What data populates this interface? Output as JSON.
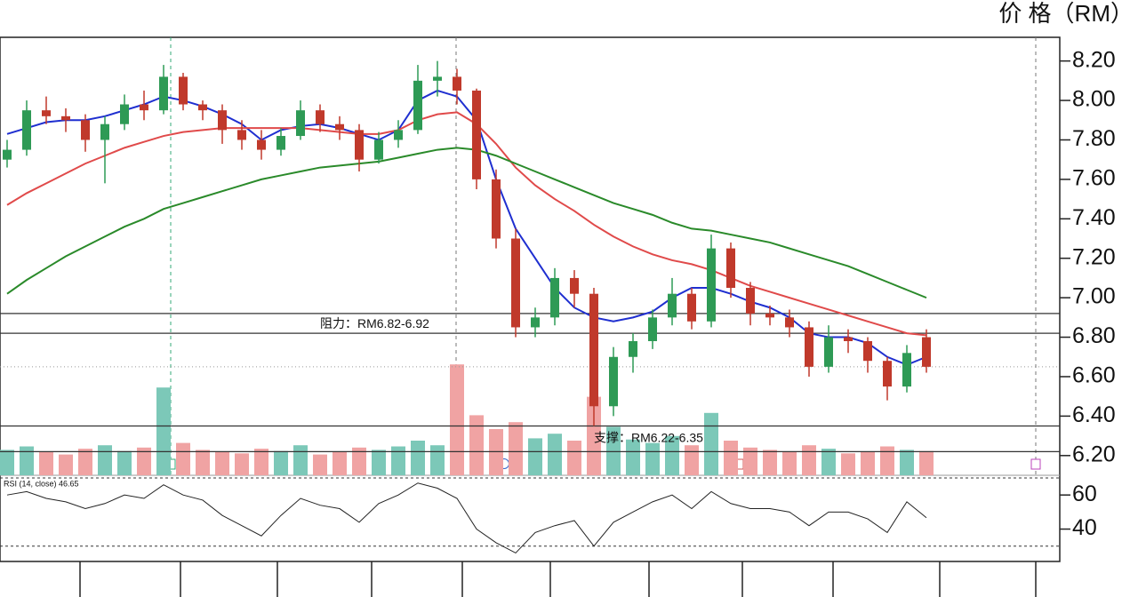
{
  "chart_data": {
    "type": "candlestick",
    "y_axis_label": "价 格（RM）",
    "ylim": [
      6.1,
      8.32
    ],
    "yticks": [
      {
        "value": 8.2,
        "label": "8.20"
      },
      {
        "value": 8.0,
        "label": "8.00"
      },
      {
        "value": 7.8,
        "label": "7.80"
      },
      {
        "value": 7.6,
        "label": "7.60"
      },
      {
        "value": 7.4,
        "label": "7.40"
      },
      {
        "value": 7.2,
        "label": "7.20"
      },
      {
        "value": 7.0,
        "label": "7.00"
      },
      {
        "value": 6.8,
        "label": "6.80"
      },
      {
        "value": 6.6,
        "label": "6.60"
      },
      {
        "value": 6.4,
        "label": "6.40"
      },
      {
        "value": 6.2,
        "label": "6.20"
      }
    ],
    "up_color": "#2e9a55",
    "down_color": "#c0392b",
    "open": [
      7.7,
      7.75,
      7.95,
      7.92,
      7.9,
      7.8,
      7.88,
      7.98,
      7.95,
      8.12,
      7.98,
      7.95,
      7.85,
      7.8,
      7.75,
      7.82,
      7.95,
      7.88,
      7.85,
      7.7,
      7.8,
      7.85,
      8.1,
      8.12,
      8.05,
      7.6,
      7.3,
      6.85,
      6.9,
      7.1,
      7.02,
      6.45,
      6.7,
      6.78,
      6.9,
      7.02,
      6.88,
      7.25,
      7.05,
      6.92,
      6.9,
      6.85,
      6.65,
      6.8,
      6.78,
      6.68,
      6.55,
      6.8
    ],
    "high": [
      7.8,
      8.0,
      8.02,
      7.96,
      7.93,
      7.92,
      8.03,
      8.05,
      8.18,
      8.14,
      8.0,
      7.98,
      7.9,
      7.85,
      7.86,
      8.0,
      7.98,
      7.92,
      7.88,
      7.84,
      7.9,
      8.18,
      8.2,
      8.16,
      8.06,
      7.65,
      7.35,
      6.95,
      7.15,
      7.14,
      7.05,
      6.75,
      6.82,
      6.94,
      7.1,
      7.05,
      7.32,
      7.28,
      7.08,
      6.96,
      6.94,
      6.88,
      6.86,
      6.84,
      6.8,
      6.7,
      6.76,
      6.84
    ],
    "low": [
      7.66,
      7.72,
      7.88,
      7.84,
      7.74,
      7.58,
      7.85,
      7.9,
      7.93,
      7.95,
      7.9,
      7.78,
      7.75,
      7.7,
      7.72,
      7.8,
      7.84,
      7.8,
      7.64,
      7.68,
      7.76,
      7.83,
      8.02,
      7.98,
      7.55,
      7.25,
      6.8,
      6.8,
      6.86,
      6.95,
      6.35,
      6.4,
      6.62,
      6.74,
      6.86,
      6.84,
      6.85,
      7.0,
      6.86,
      6.86,
      6.8,
      6.6,
      6.62,
      6.72,
      6.62,
      6.48,
      6.52,
      6.62
    ],
    "close": [
      7.75,
      7.95,
      7.92,
      7.9,
      7.8,
      7.88,
      7.98,
      7.95,
      8.12,
      7.98,
      7.95,
      7.85,
      7.8,
      7.75,
      7.82,
      7.95,
      7.88,
      7.85,
      7.7,
      7.8,
      7.85,
      8.1,
      8.12,
      8.05,
      7.6,
      7.3,
      6.85,
      6.9,
      7.1,
      7.02,
      6.45,
      6.7,
      6.78,
      6.9,
      7.02,
      6.88,
      7.25,
      7.05,
      6.92,
      6.9,
      6.85,
      6.65,
      6.8,
      6.78,
      6.68,
      6.55,
      6.72,
      6.65
    ],
    "series": [
      {
        "color": "#1f2fd0",
        "values": [
          7.83,
          7.86,
          7.89,
          7.9,
          7.9,
          7.92,
          7.95,
          7.98,
          8.02,
          8.0,
          7.97,
          7.93,
          7.88,
          7.8,
          7.85,
          7.87,
          7.88,
          7.86,
          7.83,
          7.8,
          7.85,
          8.0,
          8.05,
          8.02,
          7.9,
          7.6,
          7.35,
          7.2,
          7.05,
          6.95,
          6.9,
          6.88,
          6.9,
          6.93,
          7.0,
          7.05,
          7.05,
          7.02,
          6.98,
          6.95,
          6.9,
          6.82,
          6.8,
          6.8,
          6.77,
          6.7,
          6.66,
          6.7
        ]
      },
      {
        "color": "#e04a4a",
        "values": [
          7.47,
          7.53,
          7.58,
          7.63,
          7.68,
          7.72,
          7.76,
          7.79,
          7.82,
          7.84,
          7.85,
          7.86,
          7.86,
          7.86,
          7.86,
          7.86,
          7.85,
          7.84,
          7.83,
          7.83,
          7.85,
          7.9,
          7.93,
          7.94,
          7.88,
          7.78,
          7.66,
          7.57,
          7.5,
          7.44,
          7.37,
          7.31,
          7.26,
          7.22,
          7.19,
          7.17,
          7.14,
          7.1,
          7.06,
          7.03,
          7.0,
          6.97,
          6.94,
          6.91,
          6.88,
          6.85,
          6.82,
          6.81
        ]
      },
      {
        "color": "#2a8a2a",
        "values": [
          7.02,
          7.09,
          7.15,
          7.21,
          7.26,
          7.31,
          7.36,
          7.4,
          7.45,
          7.48,
          7.51,
          7.54,
          7.57,
          7.6,
          7.62,
          7.64,
          7.66,
          7.67,
          7.68,
          7.69,
          7.71,
          7.73,
          7.75,
          7.76,
          7.75,
          7.72,
          7.68,
          7.64,
          7.6,
          7.56,
          7.52,
          7.48,
          7.45,
          7.42,
          7.38,
          7.35,
          7.34,
          7.32,
          7.3,
          7.28,
          7.25,
          7.22,
          7.19,
          7.16,
          7.12,
          7.08,
          7.04,
          7.0
        ]
      }
    ],
    "levels": [
      6.92,
      6.82,
      6.35,
      6.22
    ],
    "annotations": [
      "阻力：RM6.82-6.92",
      "支撑：RM6.22-6.35"
    ],
    "volume": {
      "ylim": [
        0,
        10
      ],
      "up_color": "#7cc8b8",
      "down_color": "#f0a3a3",
      "values": [
        2.2,
        2.5,
        2.0,
        1.8,
        2.3,
        2.6,
        2.1,
        2.4,
        7.6,
        2.8,
        2.2,
        2.0,
        1.9,
        2.3,
        2.1,
        2.6,
        1.8,
        2.0,
        2.4,
        2.2,
        2.5,
        3.0,
        2.6,
        9.6,
        5.2,
        4.0,
        4.6,
        3.2,
        3.6,
        3.0,
        6.8,
        4.2,
        3.1,
        2.8,
        3.4,
        2.6,
        5.4,
        3.0,
        2.4,
        2.2,
        2.0,
        2.6,
        2.3,
        1.9,
        2.0,
        2.5,
        2.2,
        2.1
      ]
    },
    "rsi": {
      "label": "RSI (14, close) 46.65",
      "color": "#222222",
      "ylim": [
        21,
        70
      ],
      "yticks": [
        60,
        40
      ],
      "bands": [
        70,
        30
      ],
      "values": [
        60,
        62,
        58,
        56,
        52,
        55,
        60,
        58,
        66,
        60,
        57,
        48,
        42,
        36,
        48,
        58,
        54,
        52,
        44,
        55,
        60,
        67,
        64,
        58,
        40,
        32,
        26,
        38,
        42,
        45,
        30,
        44,
        50,
        56,
        60,
        52,
        62,
        55,
        52,
        52,
        50,
        42,
        50,
        50,
        46,
        38,
        56,
        46.65
      ]
    }
  }
}
